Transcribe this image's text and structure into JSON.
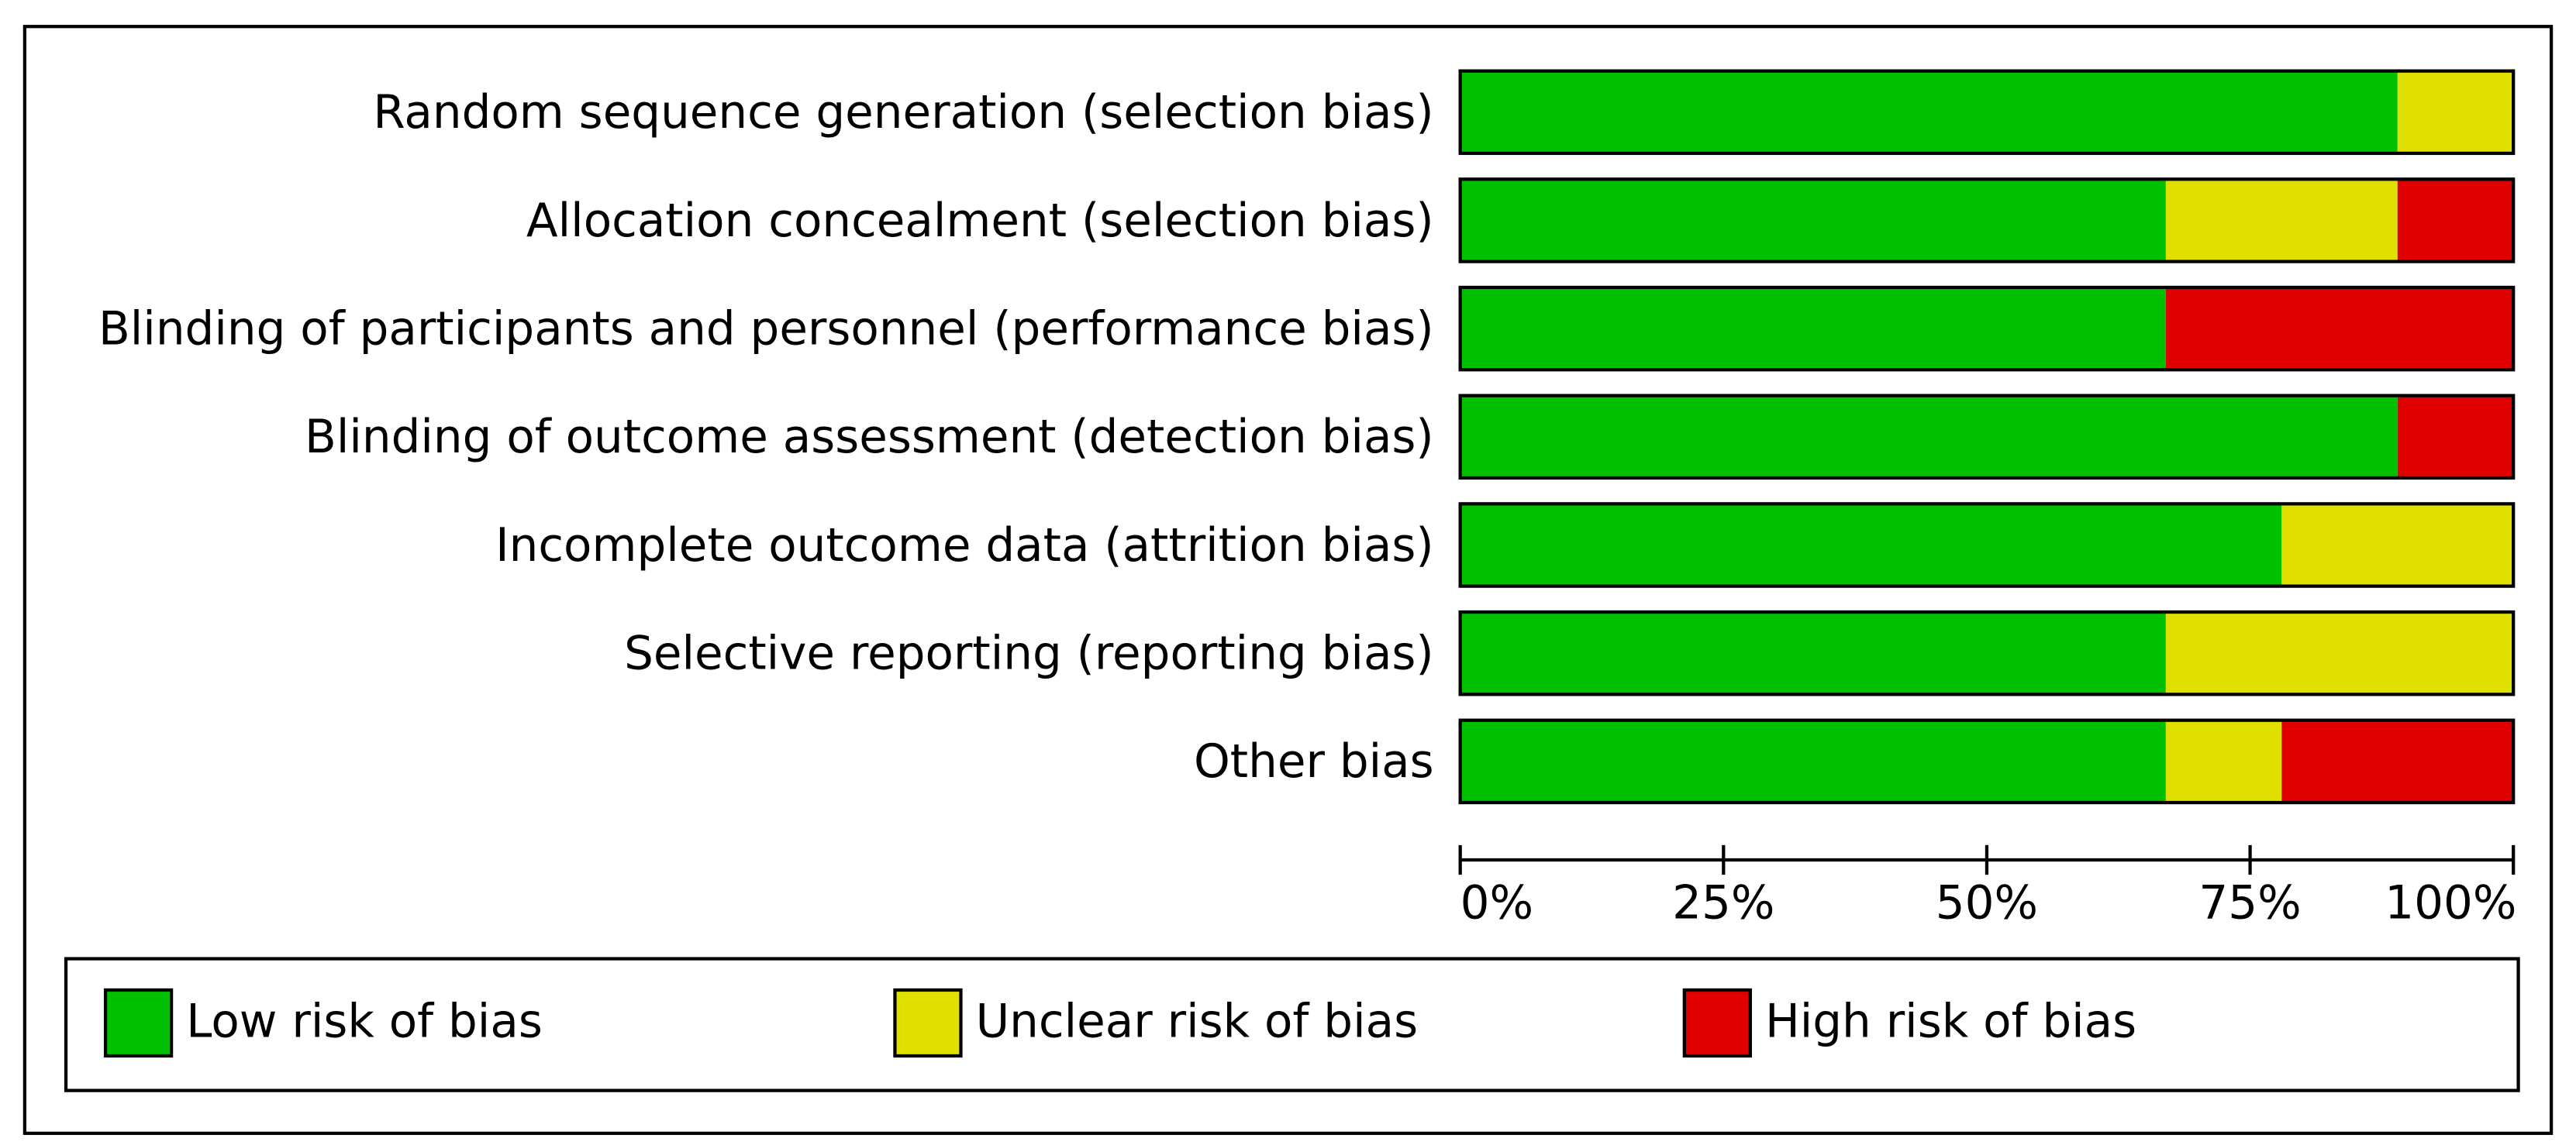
{
  "chart_data": {
    "type": "stacked-bar-horizontal",
    "categories": [
      "Random sequence generation (selection bias)",
      "Allocation concealment (selection bias)",
      "Blinding of participants and personnel (performance bias)",
      "Blinding of outcome assessment (detection bias)",
      "Incomplete outcome data (attrition bias)",
      "Selective reporting (reporting bias)",
      "Other bias"
    ],
    "series": [
      {
        "name": "Low risk of bias",
        "color": "#00c000",
        "values": [
          89,
          67,
          67,
          89,
          78,
          67,
          67
        ]
      },
      {
        "name": "Unclear risk of bias",
        "color": "#e0e000",
        "values": [
          11,
          22,
          0,
          0,
          22,
          33,
          11
        ]
      },
      {
        "name": "High risk of bias",
        "color": "#e00000",
        "values": [
          0,
          11,
          33,
          11,
          0,
          0,
          22
        ]
      }
    ],
    "xlim": [
      0,
      100
    ],
    "xticks": [
      {
        "value": 0,
        "label": "0%"
      },
      {
        "value": 25,
        "label": "25%"
      },
      {
        "value": 50,
        "label": "50%"
      },
      {
        "value": 75,
        "label": "75%"
      },
      {
        "value": 100,
        "label": "100%"
      }
    ],
    "legend": "bottom"
  }
}
